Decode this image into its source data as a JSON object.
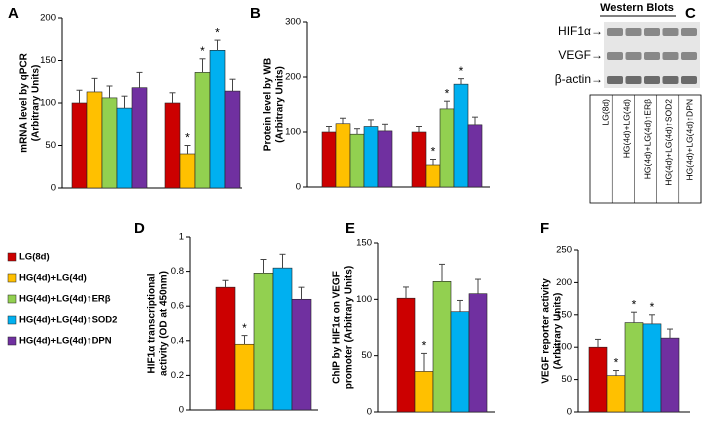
{
  "chart_data": [
    {
      "type": "bar",
      "panel": "A",
      "ylabel": [
        "mRNA level by qPCR",
        "(Arbitrary Units)"
      ],
      "ylim": [
        0,
        200
      ],
      "yticks": [
        0,
        50,
        100,
        150,
        200
      ],
      "series": [
        {
          "color": "#cc0000",
          "values": [
            100,
            100
          ],
          "errors": [
            15,
            12
          ],
          "labels": [
            null,
            null
          ]
        },
        {
          "color": "#ffc000",
          "values": [
            113,
            40
          ],
          "errors": [
            16,
            10
          ],
          "labels": [
            null,
            "*"
          ]
        },
        {
          "color": "#92d050",
          "values": [
            106,
            136
          ],
          "errors": [
            14,
            16
          ],
          "labels": [
            null,
            "*"
          ]
        },
        {
          "color": "#00b0f0",
          "values": [
            94,
            162
          ],
          "errors": [
            14,
            12
          ],
          "labels": [
            null,
            "*"
          ]
        },
        {
          "color": "#7030a0",
          "values": [
            118,
            114
          ],
          "errors": [
            18,
            14
          ],
          "labels": [
            null,
            null
          ]
        }
      ]
    },
    {
      "type": "bar",
      "panel": "B",
      "ylabel": [
        "Protein level by WB",
        "(Arbitrary Units)"
      ],
      "ylim": [
        0,
        300
      ],
      "yticks": [
        0,
        100,
        200,
        300
      ],
      "series": [
        {
          "color": "#cc0000",
          "values": [
            100,
            100
          ],
          "errors": [
            10,
            10
          ],
          "labels": [
            null,
            null
          ]
        },
        {
          "color": "#ffc000",
          "values": [
            115,
            40
          ],
          "errors": [
            10,
            10
          ],
          "labels": [
            null,
            "*"
          ]
        },
        {
          "color": "#92d050",
          "values": [
            96,
            142
          ],
          "errors": [
            10,
            14
          ],
          "labels": [
            null,
            "*"
          ]
        },
        {
          "color": "#00b0f0",
          "values": [
            110,
            187
          ],
          "errors": [
            12,
            10
          ],
          "labels": [
            null,
            "*"
          ]
        },
        {
          "color": "#7030a0",
          "values": [
            102,
            113
          ],
          "errors": [
            12,
            14
          ],
          "labels": [
            null,
            null
          ]
        }
      ]
    },
    {
      "type": "bar",
      "panel": "D",
      "ylabel": [
        "HIF1α transcriptional",
        "activity (OD at 450nm)"
      ],
      "ylim": [
        0,
        1
      ],
      "yticks": [
        0,
        0.2,
        0.4,
        0.6,
        0.8,
        1
      ],
      "series": [
        {
          "color": "#cc0000",
          "values": [
            0.71
          ],
          "errors": [
            0.04
          ],
          "labels": [
            null
          ]
        },
        {
          "color": "#ffc000",
          "values": [
            0.38
          ],
          "errors": [
            0.05
          ],
          "labels": [
            "*"
          ]
        },
        {
          "color": "#92d050",
          "values": [
            0.79
          ],
          "errors": [
            0.08
          ],
          "labels": [
            null
          ]
        },
        {
          "color": "#00b0f0",
          "values": [
            0.82
          ],
          "errors": [
            0.08
          ],
          "labels": [
            null
          ]
        },
        {
          "color": "#7030a0",
          "values": [
            0.64
          ],
          "errors": [
            0.07
          ],
          "labels": [
            null
          ]
        }
      ]
    },
    {
      "type": "bar",
      "panel": "E",
      "ylabel": [
        "ChIP by HIF1α on VEGF",
        "promoter (Arbitrary Units)"
      ],
      "ylim": [
        0,
        150
      ],
      "yticks": [
        0,
        50,
        100,
        150
      ],
      "series": [
        {
          "color": "#cc0000",
          "values": [
            101
          ],
          "errors": [
            10
          ],
          "labels": [
            null
          ]
        },
        {
          "color": "#ffc000",
          "values": [
            36
          ],
          "errors": [
            16
          ],
          "labels": [
            "*"
          ]
        },
        {
          "color": "#92d050",
          "values": [
            116
          ],
          "errors": [
            15
          ],
          "labels": [
            null
          ]
        },
        {
          "color": "#00b0f0",
          "values": [
            89
          ],
          "errors": [
            10
          ],
          "labels": [
            null
          ]
        },
        {
          "color": "#7030a0",
          "values": [
            105
          ],
          "errors": [
            13
          ],
          "labels": [
            null
          ]
        }
      ]
    },
    {
      "type": "bar",
      "panel": "F",
      "ylabel": [
        "VEGF reporter activity",
        "(Arbitrary Units)"
      ],
      "ylim": [
        0,
        250
      ],
      "yticks": [
        0,
        50,
        100,
        150,
        200,
        250
      ],
      "series": [
        {
          "color": "#cc0000",
          "values": [
            100
          ],
          "errors": [
            12
          ],
          "labels": [
            null
          ]
        },
        {
          "color": "#ffc000",
          "values": [
            56
          ],
          "errors": [
            8
          ],
          "labels": [
            "*"
          ]
        },
        {
          "color": "#92d050",
          "values": [
            138
          ],
          "errors": [
            16
          ],
          "labels": [
            "*"
          ]
        },
        {
          "color": "#00b0f0",
          "values": [
            136
          ],
          "errors": [
            14
          ],
          "labels": [
            "*"
          ]
        },
        {
          "color": "#7030a0",
          "values": [
            114
          ],
          "errors": [
            14
          ],
          "labels": [
            null
          ]
        }
      ]
    }
  ],
  "legend": [
    "LG(8d)",
    "HG(4d)+LG(4d)",
    "HG(4d)+LG(4d)↑ERβ",
    "HG(4d)+LG(4d)↑SOD2",
    "HG(4d)+LG(4d)↑DPN"
  ],
  "western_blot": {
    "panel": "C",
    "title": "Western Blots",
    "rows": [
      "HIF1α→",
      "VEGF→",
      "β-actin→"
    ],
    "lanes": [
      "LG(8d)",
      "HG(4d)+LG(4d)",
      "HG(4d)+LG(4d)↑ERβ",
      "HG(4d)+LG(4d)↑SOD2",
      "HG(4d)+LG(4d)↑DPN"
    ]
  }
}
